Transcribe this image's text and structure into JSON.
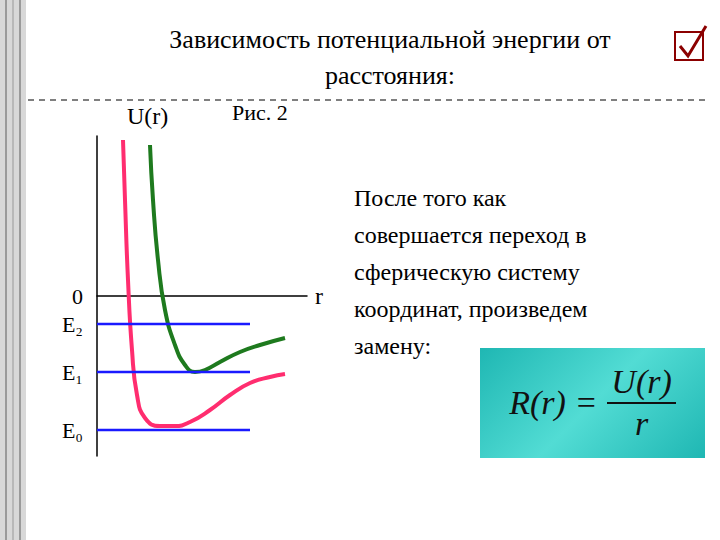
{
  "title_lines": [
    "Зависимость потенциальной энергии от",
    "расстояния:"
  ],
  "figure_label": "Рис. 2",
  "text_lines": [
    "После того как",
    "совершается переход в",
    "сферическую систему",
    "координат, произведем",
    "замену:"
  ],
  "formula": {
    "left": "R(r)",
    "operator": "=",
    "numerator": "U(r)",
    "denominator": "r"
  },
  "chart_data": {
    "type": "line",
    "y_label": "U(r)",
    "x_label": "r",
    "xlim": [
      0,
      21
    ],
    "xticks": [],
    "ylim": [
      -16,
      16
    ],
    "yticks": [
      {
        "value": -13.4,
        "label": "E₀"
      },
      {
        "value": -7.6,
        "label": "E₁"
      },
      {
        "value": -2.8,
        "label": "E₂"
      },
      0
    ],
    "tick_labels": "y",
    "grid": false,
    "series": [
      {
        "color": "#ff2d6f",
        "x": [
          2.6,
          2.8,
          3.1,
          3.5,
          4.0,
          4.8,
          6.3,
          7.8,
          9.3,
          11.3,
          13.3,
          15.3,
          17.3,
          18.8
        ],
        "values": [
          15.6,
          9.6,
          1.6,
          -5.4,
          -9.9,
          -12.2,
          -13.0,
          -13.0,
          -12.6,
          -11.4,
          -9.9,
          -8.7,
          -8.1,
          -7.8
        ]
      },
      {
        "color": "#1e7a1e",
        "x": [
          5.3,
          5.6,
          6.1,
          6.8,
          7.8,
          8.8,
          9.8,
          10.8,
          12.3,
          14.3,
          16.3,
          18.8
        ],
        "values": [
          15.1,
          9.6,
          3.6,
          -1.4,
          -4.9,
          -6.9,
          -7.6,
          -7.4,
          -6.6,
          -5.6,
          -4.9,
          -4.2
        ]
      },
      {
        "color": "#1a1aff",
        "x": [
          0,
          15.3
        ],
        "values": [
          -2.8,
          -2.8
        ]
      },
      {
        "color": "#1a1aff",
        "x": [
          0,
          15.3
        ],
        "values": [
          -7.6,
          -7.6
        ]
      },
      {
        "color": "#1a1aff",
        "x": [
          0,
          15.3
        ],
        "values": [
          -13.4,
          -13.4
        ]
      }
    ]
  }
}
